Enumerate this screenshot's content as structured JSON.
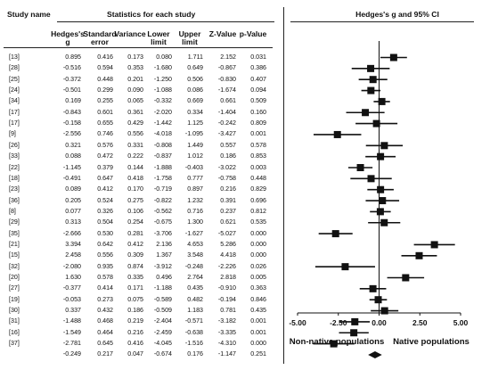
{
  "headers": {
    "study_name": "Study name",
    "stats_group": "Statistics for each study",
    "plot_title": "Hedges's g and 95% CI",
    "columns": [
      "Hedges's g",
      "Standard error",
      "Variance",
      "Lower limit",
      "Upper limit",
      "Z-Value",
      "p-Value"
    ]
  },
  "rows": [
    {
      "study": "[13]",
      "g": "0.895",
      "se": "0.416",
      "var": "0.173",
      "ll": "0.080",
      "ul": "1.711",
      "z": "2.152",
      "p": "0.031"
    },
    {
      "study": "[28]",
      "g": "-0.516",
      "se": "0.594",
      "var": "0.353",
      "ll": "-1.680",
      "ul": "0.649",
      "z": "-0.867",
      "p": "0.386"
    },
    {
      "study": "[25]",
      "g": "-0.372",
      "se": "0.448",
      "var": "0.201",
      "ll": "-1.250",
      "ul": "0.506",
      "z": "-0.830",
      "p": "0.407"
    },
    {
      "study": "[24]",
      "g": "-0.501",
      "se": "0.299",
      "var": "0.090",
      "ll": "-1.088",
      "ul": "0.086",
      "z": "-1.674",
      "p": "0.094"
    },
    {
      "study": "[34]",
      "g": "0.169",
      "se": "0.255",
      "var": "0.065",
      "ll": "-0.332",
      "ul": "0.669",
      "z": "0.661",
      "p": "0.509"
    },
    {
      "study": "[17]",
      "g": "-0.843",
      "se": "0.601",
      "var": "0.361",
      "ll": "-2.020",
      "ul": "0.334",
      "z": "-1.404",
      "p": "0.160"
    },
    {
      "study": "[17]",
      "g": "-0.158",
      "se": "0.655",
      "var": "0.429",
      "ll": "-1.442",
      "ul": "1.125",
      "z": "-0.242",
      "p": "0.809"
    },
    {
      "study": "[9]",
      "g": "-2.556",
      "se": "0.746",
      "var": "0.556",
      "ll": "-4.018",
      "ul": "-1.095",
      "z": "-3.427",
      "p": "0.001"
    },
    {
      "study": "[26]",
      "g": "0.321",
      "se": "0.576",
      "var": "0.331",
      "ll": "-0.808",
      "ul": "1.449",
      "z": "0.557",
      "p": "0.578"
    },
    {
      "study": "[33]",
      "g": "0.088",
      "se": "0.472",
      "var": "0.222",
      "ll": "-0.837",
      "ul": "1.012",
      "z": "0.186",
      "p": "0.853"
    },
    {
      "study": "[22]",
      "g": "-1.145",
      "se": "0.379",
      "var": "0.144",
      "ll": "-1.888",
      "ul": "-0.403",
      "z": "-3.022",
      "p": "0.003"
    },
    {
      "study": "[18]",
      "g": "-0.491",
      "se": "0.647",
      "var": "0.418",
      "ll": "-1.758",
      "ul": "0.777",
      "z": "-0.758",
      "p": "0.448"
    },
    {
      "study": "[23]",
      "g": "0.089",
      "se": "0.412",
      "var": "0.170",
      "ll": "-0.719",
      "ul": "0.897",
      "z": "0.216",
      "p": "0.829"
    },
    {
      "study": "[36]",
      "g": "0.205",
      "se": "0.524",
      "var": "0.275",
      "ll": "-0.822",
      "ul": "1.232",
      "z": "0.391",
      "p": "0.696"
    },
    {
      "study": "[8]",
      "g": "0.077",
      "se": "0.326",
      "var": "0.106",
      "ll": "-0.562",
      "ul": "0.716",
      "z": "0.237",
      "p": "0.812"
    },
    {
      "study": "[29]",
      "g": "0.313",
      "se": "0.504",
      "var": "0.254",
      "ll": "-0.675",
      "ul": "1.300",
      "z": "0.621",
      "p": "0.535"
    },
    {
      "study": "[35]",
      "g": "-2.666",
      "se": "0.530",
      "var": "0.281",
      "ll": "-3.706",
      "ul": "-1.627",
      "z": "-5.027",
      "p": "0.000"
    },
    {
      "study": "[21]",
      "g": "3.394",
      "se": "0.642",
      "var": "0.412",
      "ll": "2.136",
      "ul": "4.653",
      "z": "5.286",
      "p": "0.000"
    },
    {
      "study": "[15]",
      "g": "2.458",
      "se": "0.556",
      "var": "0.309",
      "ll": "1.367",
      "ul": "3.548",
      "z": "4.418",
      "p": "0.000"
    },
    {
      "study": "[32]",
      "g": "-2.080",
      "se": "0.935",
      "var": "0.874",
      "ll": "-3.912",
      "ul": "-0.248",
      "z": "-2.226",
      "p": "0.026"
    },
    {
      "study": "[20]",
      "g": "1.630",
      "se": "0.578",
      "var": "0.335",
      "ll": "0.496",
      "ul": "2.764",
      "z": "2.818",
      "p": "0.005"
    },
    {
      "study": "[27]",
      "g": "-0.377",
      "se": "0.414",
      "var": "0.171",
      "ll": "-1.188",
      "ul": "0.435",
      "z": "-0.910",
      "p": "0.363"
    },
    {
      "study": "[19]",
      "g": "-0.053",
      "se": "0.273",
      "var": "0.075",
      "ll": "-0.589",
      "ul": "0.482",
      "z": "-0.194",
      "p": "0.846"
    },
    {
      "study": "[30]",
      "g": "0.337",
      "se": "0.432",
      "var": "0.186",
      "ll": "-0.509",
      "ul": "1.183",
      "z": "0.781",
      "p": "0.435"
    },
    {
      "study": "[31]",
      "g": "-1.488",
      "se": "0.468",
      "var": "0.219",
      "ll": "-2.404",
      "ul": "-0.571",
      "z": "-3.182",
      "p": "0.001"
    },
    {
      "study": "[16]",
      "g": "-1.549",
      "se": "0.464",
      "var": "0.216",
      "ll": "-2.459",
      "ul": "-0.638",
      "z": "-3.335",
      "p": "0.001"
    },
    {
      "study": "[37]",
      "g": "-2.781",
      "se": "0.645",
      "var": "0.416",
      "ll": "-4.045",
      "ul": "-1.516",
      "z": "-4.310",
      "p": "0.000"
    },
    {
      "study": "",
      "g": "-0.249",
      "se": "0.217",
      "var": "0.047",
      "ll": "-0.674",
      "ul": "0.176",
      "z": "-1.147",
      "p": "0.251"
    }
  ],
  "chart_data": {
    "type": "forest",
    "title": "Hedges's g and 95% CI",
    "x_ticks": [
      "-5.00",
      "-2.50",
      "0.00",
      "2.50",
      "5.00"
    ],
    "xlim": [
      -5,
      5
    ],
    "left_label": "Non-native populations",
    "right_label": "Native populations",
    "studies": [
      {
        "name": "[13]",
        "g": 0.895,
        "ll": 0.08,
        "ul": 1.711
      },
      {
        "name": "[28]",
        "g": -0.516,
        "ll": -1.68,
        "ul": 0.649
      },
      {
        "name": "[25]",
        "g": -0.372,
        "ll": -1.25,
        "ul": 0.506
      },
      {
        "name": "[24]",
        "g": -0.501,
        "ll": -1.088,
        "ul": 0.086
      },
      {
        "name": "[34]",
        "g": 0.169,
        "ll": -0.332,
        "ul": 0.669
      },
      {
        "name": "[17]",
        "g": -0.843,
        "ll": -2.02,
        "ul": 0.334
      },
      {
        "name": "[17]",
        "g": -0.158,
        "ll": -1.442,
        "ul": 1.125
      },
      {
        "name": "[9]",
        "g": -2.556,
        "ll": -4.018,
        "ul": -1.095
      },
      {
        "name": "[26]",
        "g": 0.321,
        "ll": -0.808,
        "ul": 1.449
      },
      {
        "name": "[33]",
        "g": 0.088,
        "ll": -0.837,
        "ul": 1.012
      },
      {
        "name": "[22]",
        "g": -1.145,
        "ll": -1.888,
        "ul": -0.403
      },
      {
        "name": "[18]",
        "g": -0.491,
        "ll": -1.758,
        "ul": 0.777
      },
      {
        "name": "[23]",
        "g": 0.089,
        "ll": -0.719,
        "ul": 0.897
      },
      {
        "name": "[36]",
        "g": 0.205,
        "ll": -0.822,
        "ul": 1.232
      },
      {
        "name": "[8]",
        "g": 0.077,
        "ll": -0.562,
        "ul": 0.716
      },
      {
        "name": "[29]",
        "g": 0.313,
        "ll": -0.675,
        "ul": 1.3
      },
      {
        "name": "[35]",
        "g": -2.666,
        "ll": -3.706,
        "ul": -1.627
      },
      {
        "name": "[21]",
        "g": 3.394,
        "ll": 2.136,
        "ul": 4.653
      },
      {
        "name": "[15]",
        "g": 2.458,
        "ll": 1.367,
        "ul": 3.548
      },
      {
        "name": "[32]",
        "g": -2.08,
        "ll": -3.912,
        "ul": -0.248
      },
      {
        "name": "[20]",
        "g": 1.63,
        "ll": 0.496,
        "ul": 2.764
      },
      {
        "name": "[27]",
        "g": -0.377,
        "ll": -1.188,
        "ul": 0.435
      },
      {
        "name": "[19]",
        "g": -0.053,
        "ll": -0.589,
        "ul": 0.482
      },
      {
        "name": "[30]",
        "g": 0.337,
        "ll": -0.509,
        "ul": 1.183
      },
      {
        "name": "[31]",
        "g": -1.488,
        "ll": -2.404,
        "ul": -0.571
      },
      {
        "name": "[16]",
        "g": -1.549,
        "ll": -2.459,
        "ul": -0.638
      },
      {
        "name": "[37]",
        "g": -2.781,
        "ll": -4.045,
        "ul": -1.516
      }
    ],
    "summary": {
      "g": -0.249,
      "ll": -0.674,
      "ul": 0.176
    }
  }
}
